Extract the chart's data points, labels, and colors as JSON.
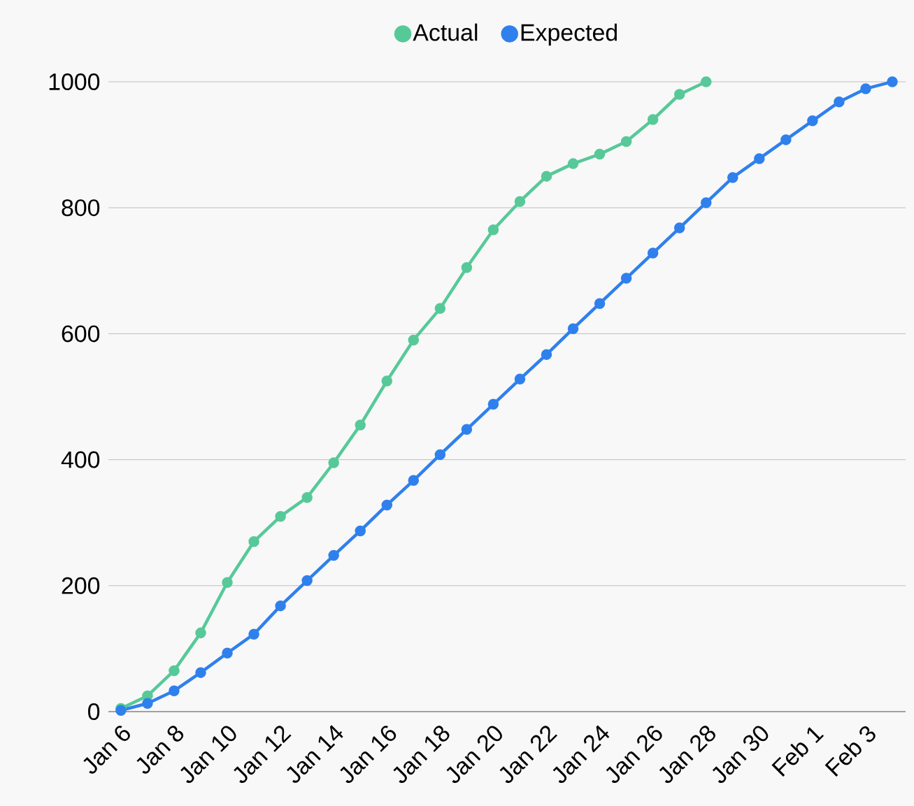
{
  "chart_data": {
    "type": "line",
    "categories": [
      "Jan 6",
      null,
      "Jan 8",
      null,
      "Jan 10",
      null,
      "Jan 12",
      null,
      "Jan 14",
      null,
      "Jan 16",
      null,
      "Jan 18",
      null,
      "Jan 20",
      null,
      "Jan 22",
      null,
      "Jan 24",
      null,
      "Jan 26",
      null,
      "Jan 28",
      null,
      "Jan 30",
      null,
      "Feb 1",
      null,
      "Feb 3",
      null
    ],
    "series": [
      {
        "name": "Actual",
        "color": "#57c999",
        "values": [
          5,
          25,
          65,
          125,
          205,
          270,
          310,
          340,
          395,
          455,
          525,
          590,
          640,
          705,
          765,
          810,
          850,
          870,
          885,
          905,
          940,
          980,
          1000,
          null,
          null,
          null,
          null,
          null,
          null,
          null
        ]
      },
      {
        "name": "Expected",
        "color": "#2f80ed",
        "values": [
          2,
          13,
          33,
          62,
          93,
          123,
          168,
          208,
          248,
          287,
          328,
          367,
          408,
          448,
          488,
          528,
          567,
          608,
          648,
          688,
          728,
          768,
          808,
          848,
          878,
          908,
          938,
          968,
          989,
          1000
        ]
      }
    ],
    "ylim": [
      0,
      1000
    ],
    "yticks": [
      0,
      200,
      400,
      600,
      800,
      1000
    ],
    "grid": "y",
    "legend": "top",
    "marker": "circle",
    "line_style": "solid"
  }
}
